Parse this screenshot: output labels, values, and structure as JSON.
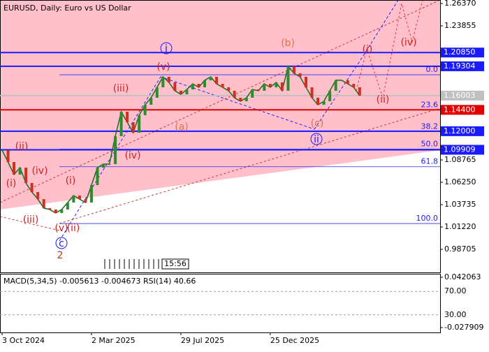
{
  "chart_data": [
    {
      "type": "line",
      "title": "EURUSD, Daily:  Euro vs US Dollar",
      "categories": [
        "3 Oct 2024",
        null,
        null,
        null,
        null,
        null,
        null,
        null,
        null,
        null,
        null,
        null,
        null,
        null,
        null,
        "2 Mar 2025",
        null,
        null,
        null,
        null,
        null,
        null,
        null,
        null,
        null,
        null,
        null,
        null,
        null,
        null,
        "29 Jul 2025",
        null,
        null,
        null,
        null,
        null,
        null,
        null,
        null,
        null,
        null,
        null,
        null,
        null,
        null,
        "25 Dec 2025",
        null,
        null,
        null,
        null,
        null,
        null,
        null,
        null,
        null,
        null,
        null,
        null,
        null,
        null,
        null
      ],
      "series": [
        {
          "name": "EURUSD",
          "color": "#1b6b1b",
          "values": [
            1.0986,
            1.0853,
            1.0712,
            1.079,
            1.0617,
            1.0515,
            1.0436,
            1.0334,
            1.0319,
            1.0279,
            1.0319,
            1.0397,
            1.0476,
            1.0436,
            1.0397,
            1.0594,
            1.079,
            1.0829,
            1.0829,
            1.1144,
            1.1419,
            1.1301,
            1.1183,
            1.138,
            1.1497,
            1.1576,
            1.1694,
            1.1812,
            1.1749,
            1.1655,
            1.1615,
            1.167,
            1.1733,
            1.1694,
            1.1773,
            1.1812,
            1.1733,
            1.1694,
            1.1655,
            1.1576,
            1.1537,
            1.1576,
            1.167,
            1.1655,
            1.1733,
            1.1694,
            1.1749,
            1.1655,
            1.193,
            1.1851,
            1.1812,
            1.1694,
            1.1576,
            1.1497,
            1.1537,
            1.1655,
            1.1773,
            1.1773,
            1.1733,
            1.1694,
            1.16
          ]
        }
      ],
      "ylim": [
        0.96112,
        1.26763
      ],
      "yticks": [
        {
          "value": 1.2637,
          "label": "1.26370"
        },
        {
          "value": 1.23855,
          "label": "1.23855"
        },
        {
          "value": 1.08765,
          "label": "1.08765"
        },
        {
          "value": 1.0625,
          "label": "1.06250"
        },
        {
          "value": 1.03735,
          "label": "1.03735"
        },
        {
          "value": 1.0122,
          "label": "1.01220"
        },
        {
          "value": 0.98705,
          "label": "0.98705"
        }
      ],
      "levels": [
        {
          "value": 1.2085,
          "label": "1.20850",
          "color": "#1a1aff"
        },
        {
          "value": 1.19304,
          "label": "1.19304",
          "color": "#1a1aff"
        },
        {
          "value": 1.16003,
          "label": "1.16003",
          "color": "#c0c0c0"
        },
        {
          "value": 1.144,
          "label": "1.14400",
          "color": "#e00000"
        },
        {
          "value": 1.12,
          "label": "1.12000",
          "color": "#1a1aff"
        },
        {
          "value": 1.09909,
          "label": "1.09909",
          "color": "#1a1aff"
        }
      ],
      "fib_levels": [
        {
          "value": 1.1835,
          "label": "0.0"
        },
        {
          "value": 1.144,
          "label": "23.6"
        },
        {
          "value": 1.1196,
          "label": "38.2"
        },
        {
          "value": 1.0998,
          "label": "50.0"
        },
        {
          "value": 1.08,
          "label": "61.8"
        },
        {
          "value": 1.0161,
          "label": "100.0"
        }
      ],
      "annotations": [
        "i",
        "ii",
        "c",
        "(b)",
        "(a)",
        "(c)",
        "(v)",
        "(iii)",
        "(iv)",
        "(i)",
        "(ii)",
        "(iv)",
        "(iii)",
        "(i)",
        "(ii)",
        "(v)",
        "2",
        "(i)",
        "(ii)",
        "(iv)"
      ],
      "time_label": "15:56"
    },
    {
      "type": "indicator",
      "title": "MACD(5,34,5) -0.005613 -0.004673 RSI(14) 40.66",
      "ylim": [
        -0.0347,
        0.0469
      ],
      "yticks": [
        {
          "value": 0.042063,
          "label": "0.042063"
        },
        {
          "value": -0.027909,
          "label": "-0.027909"
        }
      ],
      "y2lim": [
        0,
        100
      ],
      "y2ticks": [
        {
          "value": 70,
          "label": "70.00"
        },
        {
          "value": 30,
          "label": "30.00"
        }
      ]
    }
  ]
}
